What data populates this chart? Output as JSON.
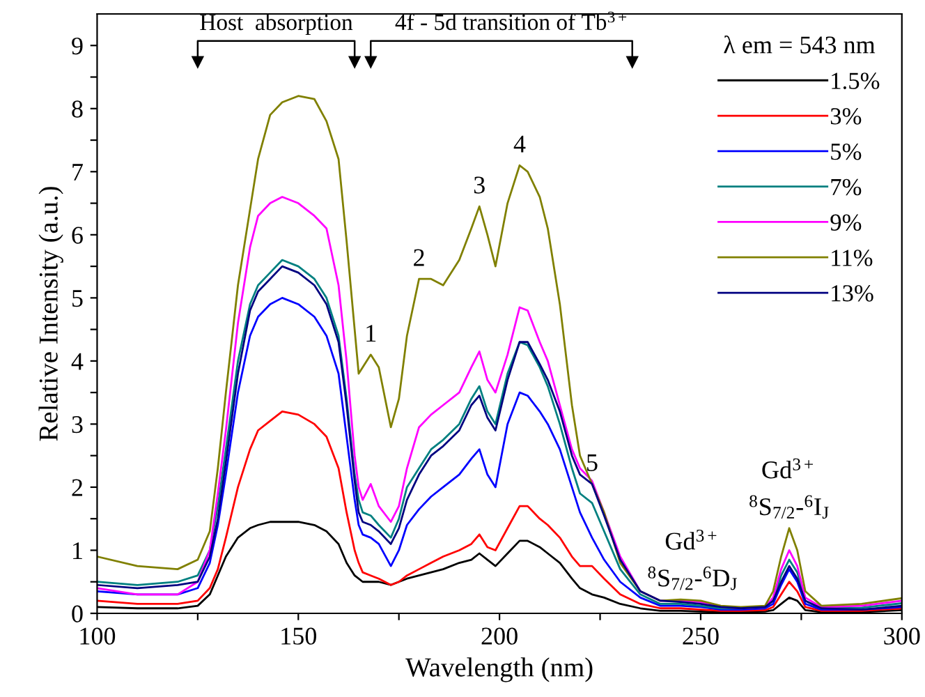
{
  "chart_data": {
    "type": "line",
    "xlabel": "Wavelength (nm)",
    "ylabel": "Relative Intensity (a.u.)",
    "legend_title": "λ em = 543 nm",
    "x": [
      100,
      110,
      120,
      125,
      128,
      130,
      132,
      135,
      138,
      140,
      143,
      146,
      150,
      154,
      157,
      160,
      162,
      164,
      165,
      166,
      168,
      170,
      173,
      175,
      177,
      180,
      183,
      186,
      190,
      193,
      195,
      197,
      199,
      202,
      205,
      207,
      210,
      212,
      215,
      218,
      220,
      223,
      226,
      230,
      235,
      240,
      245,
      250,
      255,
      260,
      266,
      268,
      270,
      272,
      274,
      276,
      280,
      290,
      300
    ],
    "series": [
      {
        "name": "1.5%",
        "color": "#000000",
        "values": [
          0.1,
          0.08,
          0.08,
          0.12,
          0.3,
          0.6,
          0.9,
          1.2,
          1.35,
          1.4,
          1.45,
          1.45,
          1.45,
          1.4,
          1.3,
          1.1,
          0.8,
          0.6,
          0.55,
          0.5,
          0.5,
          0.5,
          0.45,
          0.5,
          0.55,
          0.6,
          0.65,
          0.7,
          0.8,
          0.85,
          0.95,
          0.85,
          0.75,
          0.95,
          1.15,
          1.15,
          1.05,
          0.95,
          0.8,
          0.55,
          0.4,
          0.3,
          0.25,
          0.15,
          0.08,
          0.04,
          0.04,
          0.03,
          0.02,
          0.02,
          0.03,
          0.05,
          0.15,
          0.25,
          0.2,
          0.05,
          0.02,
          0.02,
          0.05
        ]
      },
      {
        "name": "3%",
        "color": "#ff0000",
        "values": [
          0.2,
          0.15,
          0.15,
          0.2,
          0.4,
          0.7,
          1.2,
          2.0,
          2.6,
          2.9,
          3.05,
          3.2,
          3.15,
          3.0,
          2.8,
          2.3,
          1.6,
          1.0,
          0.8,
          0.65,
          0.6,
          0.55,
          0.45,
          0.5,
          0.6,
          0.7,
          0.8,
          0.9,
          1.0,
          1.1,
          1.25,
          1.05,
          1.0,
          1.35,
          1.7,
          1.7,
          1.5,
          1.4,
          1.2,
          0.9,
          0.75,
          0.75,
          0.55,
          0.3,
          0.15,
          0.08,
          0.08,
          0.06,
          0.04,
          0.04,
          0.05,
          0.1,
          0.3,
          0.5,
          0.35,
          0.1,
          0.04,
          0.04,
          0.08
        ]
      },
      {
        "name": "5%",
        "color": "#0000ff",
        "values": [
          0.35,
          0.3,
          0.3,
          0.4,
          0.8,
          1.4,
          2.2,
          3.5,
          4.4,
          4.7,
          4.9,
          5.0,
          4.9,
          4.7,
          4.4,
          3.8,
          2.8,
          1.8,
          1.4,
          1.25,
          1.2,
          1.1,
          0.75,
          1.0,
          1.4,
          1.65,
          1.85,
          2.0,
          2.2,
          2.45,
          2.6,
          2.2,
          2.0,
          3.0,
          3.5,
          3.45,
          3.2,
          3.0,
          2.6,
          2.0,
          1.6,
          1.2,
          0.85,
          0.5,
          0.25,
          0.12,
          0.12,
          0.1,
          0.06,
          0.06,
          0.08,
          0.15,
          0.45,
          0.7,
          0.5,
          0.15,
          0.06,
          0.06,
          0.1
        ]
      },
      {
        "name": "7%",
        "color": "#008080",
        "values": [
          0.5,
          0.45,
          0.5,
          0.6,
          1.0,
          1.7,
          2.6,
          4.0,
          4.9,
          5.2,
          5.4,
          5.6,
          5.5,
          5.3,
          5.0,
          4.4,
          3.4,
          2.2,
          1.8,
          1.6,
          1.55,
          1.4,
          1.2,
          1.5,
          2.0,
          2.3,
          2.6,
          2.75,
          3.0,
          3.4,
          3.6,
          3.2,
          3.0,
          3.8,
          4.3,
          4.25,
          3.9,
          3.6,
          3.0,
          2.3,
          1.9,
          1.75,
          1.3,
          0.7,
          0.3,
          0.15,
          0.15,
          0.12,
          0.08,
          0.08,
          0.1,
          0.2,
          0.6,
          0.85,
          0.65,
          0.2,
          0.08,
          0.09,
          0.16
        ]
      },
      {
        "name": "9%",
        "color": "#ff00ff",
        "values": [
          0.4,
          0.3,
          0.3,
          0.5,
          1.0,
          1.9,
          2.9,
          4.6,
          5.8,
          6.3,
          6.5,
          6.6,
          6.5,
          6.3,
          6.1,
          5.2,
          4.0,
          2.5,
          2.0,
          1.8,
          2.05,
          1.7,
          1.45,
          1.7,
          2.3,
          2.95,
          3.15,
          3.3,
          3.5,
          3.9,
          4.15,
          3.7,
          3.5,
          4.1,
          4.85,
          4.8,
          4.3,
          4.0,
          3.3,
          2.6,
          2.3,
          2.1,
          1.6,
          0.9,
          0.35,
          0.2,
          0.2,
          0.18,
          0.1,
          0.08,
          0.1,
          0.25,
          0.7,
          1.0,
          0.75,
          0.25,
          0.1,
          0.12,
          0.2
        ]
      },
      {
        "name": "11%",
        "color": "#808000",
        "values": [
          0.9,
          0.75,
          0.7,
          0.85,
          1.3,
          2.3,
          3.5,
          5.2,
          6.4,
          7.2,
          7.9,
          8.1,
          8.2,
          8.15,
          7.8,
          7.2,
          5.9,
          4.5,
          3.8,
          3.9,
          4.1,
          3.9,
          2.95,
          3.4,
          4.4,
          5.3,
          5.3,
          5.2,
          5.6,
          6.1,
          6.45,
          6.0,
          5.5,
          6.5,
          7.1,
          7.0,
          6.6,
          6.1,
          4.9,
          3.3,
          2.5,
          2.05,
          1.6,
          0.8,
          0.35,
          0.2,
          0.22,
          0.2,
          0.12,
          0.1,
          0.12,
          0.35,
          0.9,
          1.35,
          1.0,
          0.35,
          0.12,
          0.15,
          0.24
        ]
      },
      {
        "name": "13%",
        "color": "#000080",
        "values": [
          0.45,
          0.4,
          0.45,
          0.5,
          0.9,
          1.5,
          2.4,
          3.8,
          4.8,
          5.1,
          5.3,
          5.5,
          5.4,
          5.2,
          4.9,
          4.3,
          3.3,
          2.1,
          1.6,
          1.45,
          1.4,
          1.3,
          1.1,
          1.35,
          1.8,
          2.2,
          2.5,
          2.65,
          2.9,
          3.3,
          3.45,
          3.1,
          2.9,
          3.7,
          4.3,
          4.3,
          3.95,
          3.7,
          3.2,
          2.5,
          2.2,
          2.05,
          1.55,
          0.85,
          0.35,
          0.2,
          0.18,
          0.15,
          0.1,
          0.08,
          0.1,
          0.2,
          0.5,
          0.75,
          0.55,
          0.2,
          0.08,
          0.06,
          0.12
        ]
      }
    ],
    "annotations": [
      "Host  absorption",
      "4f - 5d transition of Tb$^{3+}$",
      {
        "text": "1",
        "x": 168,
        "y": 4.1
      },
      {
        "text": "2",
        "x": 180,
        "y": 5.3
      },
      {
        "text": "3",
        "x": 195,
        "y": 6.45
      },
      {
        "text": "4",
        "x": 205,
        "y": 7.1
      },
      {
        "text": "5",
        "x": 223,
        "y": 2.05
      },
      {
        "text": "Gd$^{3+}$",
        "x": 248,
        "y": 0.22
      },
      {
        "text": "$^{8}$S$_{7/2}$-$^{6}$D$_{J}$",
        "x": 248,
        "y": 0.22
      },
      {
        "text": "Gd$^{3+}$",
        "x": 272,
        "y": 1.35
      },
      {
        "text": "$^{8}$S$_{7/2}$-$^{6}$I$_{J}$",
        "x": 272,
        "y": 1.35
      }
    ],
    "xlim": [
      100,
      300
    ],
    "ylim": [
      0,
      9.5
    ],
    "xticks": [
      100,
      {
        "value": 125,
        "label": null
      },
      150,
      {
        "value": 175,
        "label": null
      },
      200,
      {
        "value": 225,
        "label": null
      },
      250,
      {
        "value": 275,
        "label": null
      },
      300
    ],
    "yticks": [
      0,
      {
        "value": 0.5,
        "label": null
      },
      1,
      {
        "value": 1.5,
        "label": null
      },
      2,
      {
        "value": 2.5,
        "label": null
      },
      3,
      {
        "value": 3.5,
        "label": null
      },
      4,
      {
        "value": 4.5,
        "label": null
      },
      5,
      {
        "value": 5.5,
        "label": null
      },
      6,
      {
        "value": 6.5,
        "label": null
      },
      7,
      {
        "value": 7.5,
        "label": null
      },
      8,
      {
        "value": 8.5,
        "label": null
      },
      9
    ],
    "grid": false,
    "legend": "top right",
    "line_style": "solid"
  }
}
